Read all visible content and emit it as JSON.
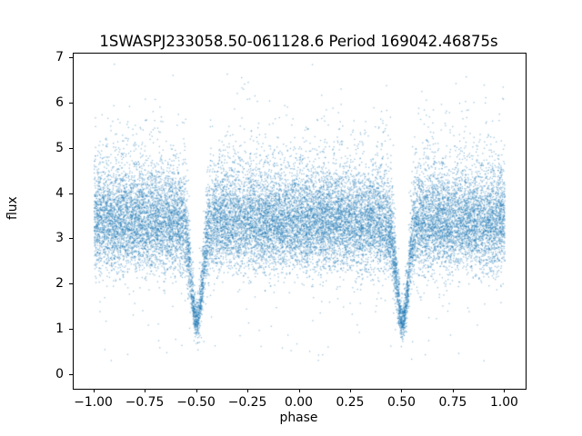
{
  "chart_data": {
    "type": "scatter",
    "title": "1SWASPJ233058.50-061128.6 Period 169042.46875s",
    "xlabel": "phase",
    "ylabel": "flux",
    "xlim": [
      -1.1,
      1.1
    ],
    "ylim": [
      -0.3,
      7.1
    ],
    "grid": false,
    "legend": "none",
    "marker_color": "#1f77b4",
    "marker_alpha": 0.45,
    "marker_size_px": 1.3,
    "x_ticks": [
      {
        "v": -1.0,
        "label": "−1.00"
      },
      {
        "v": -0.75,
        "label": "−0.75"
      },
      {
        "v": -0.5,
        "label": "−0.50"
      },
      {
        "v": -0.25,
        "label": "−0.25"
      },
      {
        "v": 0.0,
        "label": "0.00"
      },
      {
        "v": 0.25,
        "label": "0.25"
      },
      {
        "v": 0.5,
        "label": "0.50"
      },
      {
        "v": 0.75,
        "label": "0.75"
      },
      {
        "v": 1.0,
        "label": "1.00"
      }
    ],
    "y_ticks": [
      {
        "v": 0,
        "label": "0"
      },
      {
        "v": 1,
        "label": "1"
      },
      {
        "v": 2,
        "label": "2"
      },
      {
        "v": 3,
        "label": "3"
      },
      {
        "v": 4,
        "label": "4"
      },
      {
        "v": 5,
        "label": "5"
      },
      {
        "v": 6,
        "label": "6"
      },
      {
        "v": 7,
        "label": "7"
      }
    ],
    "series": [
      {
        "name": "phase-folded flux",
        "description": "Dense scatter band of flux ~2.3-4.5 centered near 3.3 across phase -1 to 1, sparse outliers up to ~6.7 and below ~1, with deep V-shaped eclipse dips at phase -0.5 and +0.5 reaching minimum flux ~1.1",
        "baseline_flux": 3.3,
        "eclipse_minima_phase": [
          -0.5,
          0.5
        ],
        "eclipse_min_flux": 1.1,
        "model": {
          "seed": 7,
          "n_points": 22000,
          "phase_min": -1.0,
          "phase_max": 1.0,
          "baseline": 3.3,
          "noise_sigma": 0.5,
          "tail_fraction": 0.25,
          "tail_scale": 0.75,
          "outlier_fraction": 0.012,
          "outlier_extra": 2.2,
          "low_outlier_fraction": 0.003,
          "low_outlier_min": 0.3,
          "low_outlier_span": 1.6,
          "flux_floor": 0.05,
          "flux_ceiling": 6.9,
          "eclipses": [
            {
              "center": -0.5,
              "depth": 0.66,
              "width": 0.027
            },
            {
              "center": 0.5,
              "depth": 0.66,
              "width": 0.027
            }
          ]
        }
      }
    ]
  }
}
